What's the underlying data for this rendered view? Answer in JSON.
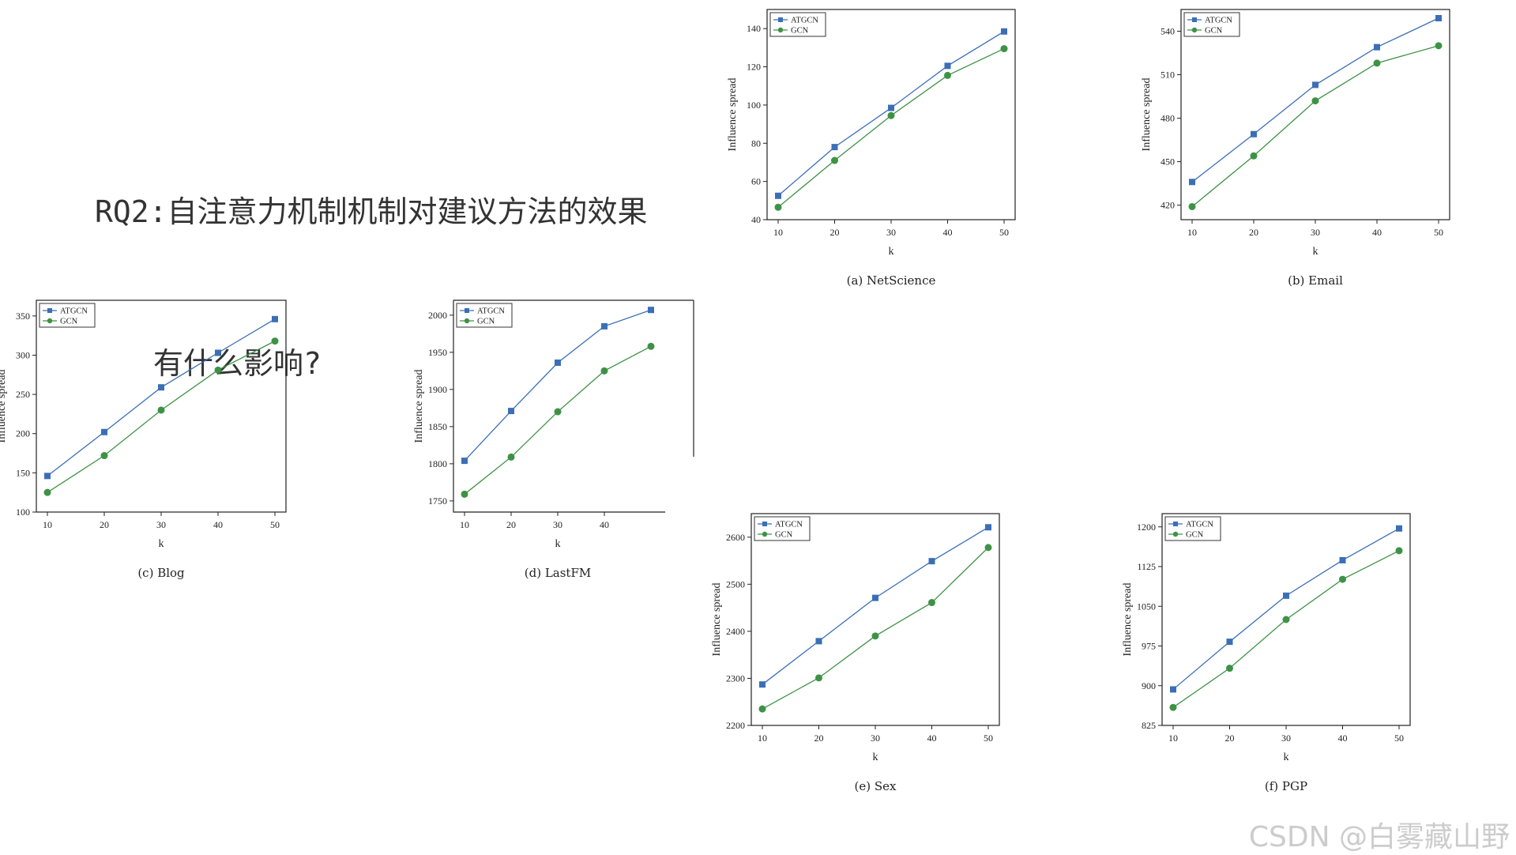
{
  "slide": {
    "title_line1": "RQ2:自注意力机制机制对建议方法的效果",
    "title_line2": "有什么影响?"
  },
  "watermark": "CSDN @白雾藏山野",
  "colors": {
    "atgcn": "#3b6fb5",
    "gcn": "#3e9245"
  },
  "markers": {
    "atgcn": "square",
    "gcn": "circle"
  },
  "chart_data": [
    {
      "id": "netscience",
      "type": "line",
      "caption": "(a) NetScience",
      "xlabel": "k",
      "ylabel": "Influence spread",
      "x": [
        10,
        20,
        30,
        40,
        50
      ],
      "xticks": [
        "10",
        "20",
        "30",
        "40",
        "50"
      ],
      "ylim": [
        40,
        150
      ],
      "yticks": [
        40,
        60,
        80,
        100,
        120,
        140
      ],
      "legend": "top-left",
      "grid": false,
      "series": [
        {
          "name": "ATGCN",
          "values": [
            52.5,
            78,
            98.5,
            120.5,
            138.5
          ]
        },
        {
          "name": "GCN",
          "values": [
            46.5,
            71,
            94.5,
            115.5,
            129.5
          ]
        }
      ]
    },
    {
      "id": "email",
      "type": "line",
      "caption": "(b) Email",
      "xlabel": "k",
      "ylabel": "Influence spread",
      "x": [
        10,
        20,
        30,
        40,
        50
      ],
      "xticks": [
        "10",
        "20",
        "30",
        "40",
        "50"
      ],
      "ylim": [
        410,
        555
      ],
      "yticks": [
        420,
        450,
        480,
        510,
        540
      ],
      "legend": "top-left",
      "grid": false,
      "series": [
        {
          "name": "ATGCN",
          "values": [
            436,
            469,
            503,
            529,
            549
          ]
        },
        {
          "name": "GCN",
          "values": [
            419,
            454,
            492,
            518,
            530
          ]
        }
      ]
    },
    {
      "id": "blog",
      "type": "line",
      "caption": "(c) Blog",
      "xlabel": "k",
      "ylabel": "Influence spread",
      "x": [
        10,
        20,
        30,
        40,
        50
      ],
      "xticks": [
        "10",
        "20",
        "30",
        "40",
        "50"
      ],
      "ylim": [
        100,
        370
      ],
      "yticks": [
        100,
        150,
        200,
        250,
        300,
        350
      ],
      "legend": "top-left",
      "grid": false,
      "series": [
        {
          "name": "ATGCN",
          "values": [
            146,
            202,
            259,
            303,
            346
          ]
        },
        {
          "name": "GCN",
          "values": [
            125,
            172,
            230,
            281,
            318
          ]
        }
      ]
    },
    {
      "id": "lastfm",
      "type": "line",
      "caption": "(d) LastFM",
      "xlabel": "k",
      "ylabel": "Influence spread",
      "x": [
        10,
        20,
        30,
        40,
        50
      ],
      "xticks": [
        "10",
        "20",
        "30",
        "40"
      ],
      "ylim": [
        1735,
        2020
      ],
      "yticks": [
        1750,
        1800,
        1850,
        1900,
        1950,
        2000
      ],
      "legend": "top-left",
      "grid": false,
      "series": [
        {
          "name": "ATGCN",
          "values": [
            1804,
            1871,
            1936,
            1985,
            2007
          ]
        },
        {
          "name": "GCN",
          "values": [
            1759,
            1809,
            1870,
            1925,
            1958
          ]
        }
      ]
    },
    {
      "id": "sex",
      "type": "line",
      "caption": "(e) Sex",
      "xlabel": "k",
      "ylabel": "Influence spread",
      "x": [
        10,
        20,
        30,
        40,
        50
      ],
      "xticks": [
        "10",
        "20",
        "30",
        "40",
        "50"
      ],
      "ylim": [
        2200,
        2650
      ],
      "yticks": [
        2200,
        2300,
        2400,
        2500,
        2600
      ],
      "legend": "top-left",
      "grid": false,
      "series": [
        {
          "name": "ATGCN",
          "values": [
            2287,
            2379,
            2471,
            2549,
            2621
          ]
        },
        {
          "name": "GCN",
          "values": [
            2235,
            2301,
            2390,
            2461,
            2578
          ]
        }
      ]
    },
    {
      "id": "pgp",
      "type": "line",
      "caption": "(f) PGP",
      "xlabel": "k",
      "ylabel": "Influence spread",
      "x": [
        10,
        20,
        30,
        40,
        50
      ],
      "xticks": [
        "10",
        "20",
        "30",
        "40",
        "50"
      ],
      "ylim": [
        825,
        1225
      ],
      "yticks": [
        825,
        900,
        975,
        1050,
        1125,
        1200
      ],
      "legend": "top-left",
      "grid": false,
      "series": [
        {
          "name": "ATGCN",
          "values": [
            893,
            983,
            1070,
            1137,
            1197
          ]
        },
        {
          "name": "GCN",
          "values": [
            859,
            933,
            1025,
            1101,
            1155
          ]
        }
      ]
    }
  ]
}
